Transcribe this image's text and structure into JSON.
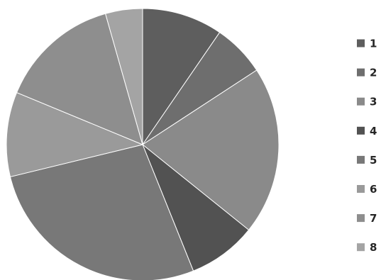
{
  "chart_data": {
    "type": "pie",
    "title": "",
    "start_angle_deg": 0,
    "direction": "clockwise",
    "legend_position": "right",
    "categories": [
      "1",
      "2",
      "3",
      "4",
      "5",
      "6",
      "7",
      "8"
    ],
    "values": [
      10,
      6.5,
      20.9,
      8.5,
      28.5,
      10.5,
      15,
      4.6
    ],
    "colors": [
      "#5e5e5e",
      "#6e6e6e",
      "#8a8a8a",
      "#525252",
      "#787878",
      "#9a9a9a",
      "#8e8e8e",
      "#a4a4a4"
    ]
  }
}
